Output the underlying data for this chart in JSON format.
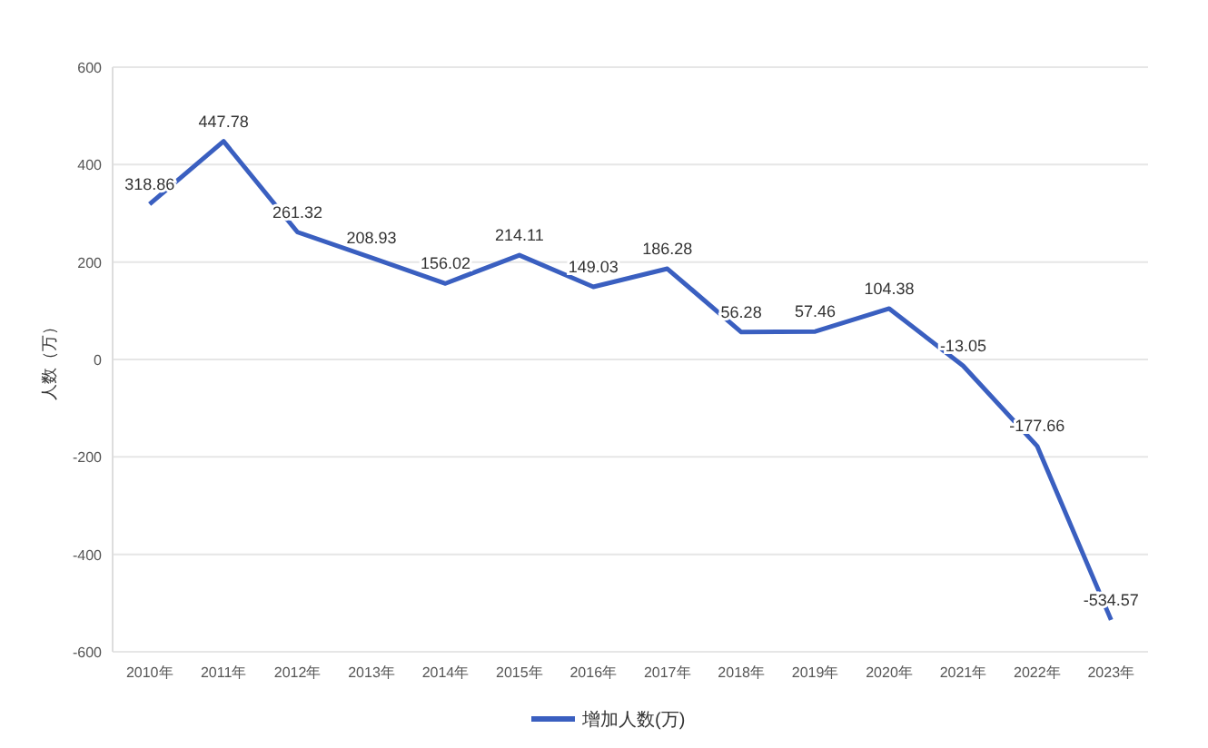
{
  "chart_data": {
    "type": "line",
    "ylabel": "人数（万）",
    "categories": [
      "2010年",
      "2011年",
      "2012年",
      "2013年",
      "2014年",
      "2015年",
      "2016年",
      "2017年",
      "2018年",
      "2019年",
      "2020年",
      "2021年",
      "2022年",
      "2023年"
    ],
    "series": [
      {
        "name": "增加人数(万)",
        "color": "#3a5fc0",
        "values": [
          318.86,
          447.78,
          261.32,
          208.93,
          156.02,
          214.11,
          149.03,
          186.28,
          56.28,
          57.46,
          104.38,
          -13.05,
          -177.66,
          -534.57
        ]
      }
    ],
    "ylim": [
      -600,
      600
    ],
    "yticks": [
      -600,
      -400,
      -200,
      0,
      200,
      400,
      600
    ],
    "grid": "y",
    "legend": "bottom",
    "data_labels": true,
    "marker": "none",
    "line_style": "solid"
  }
}
